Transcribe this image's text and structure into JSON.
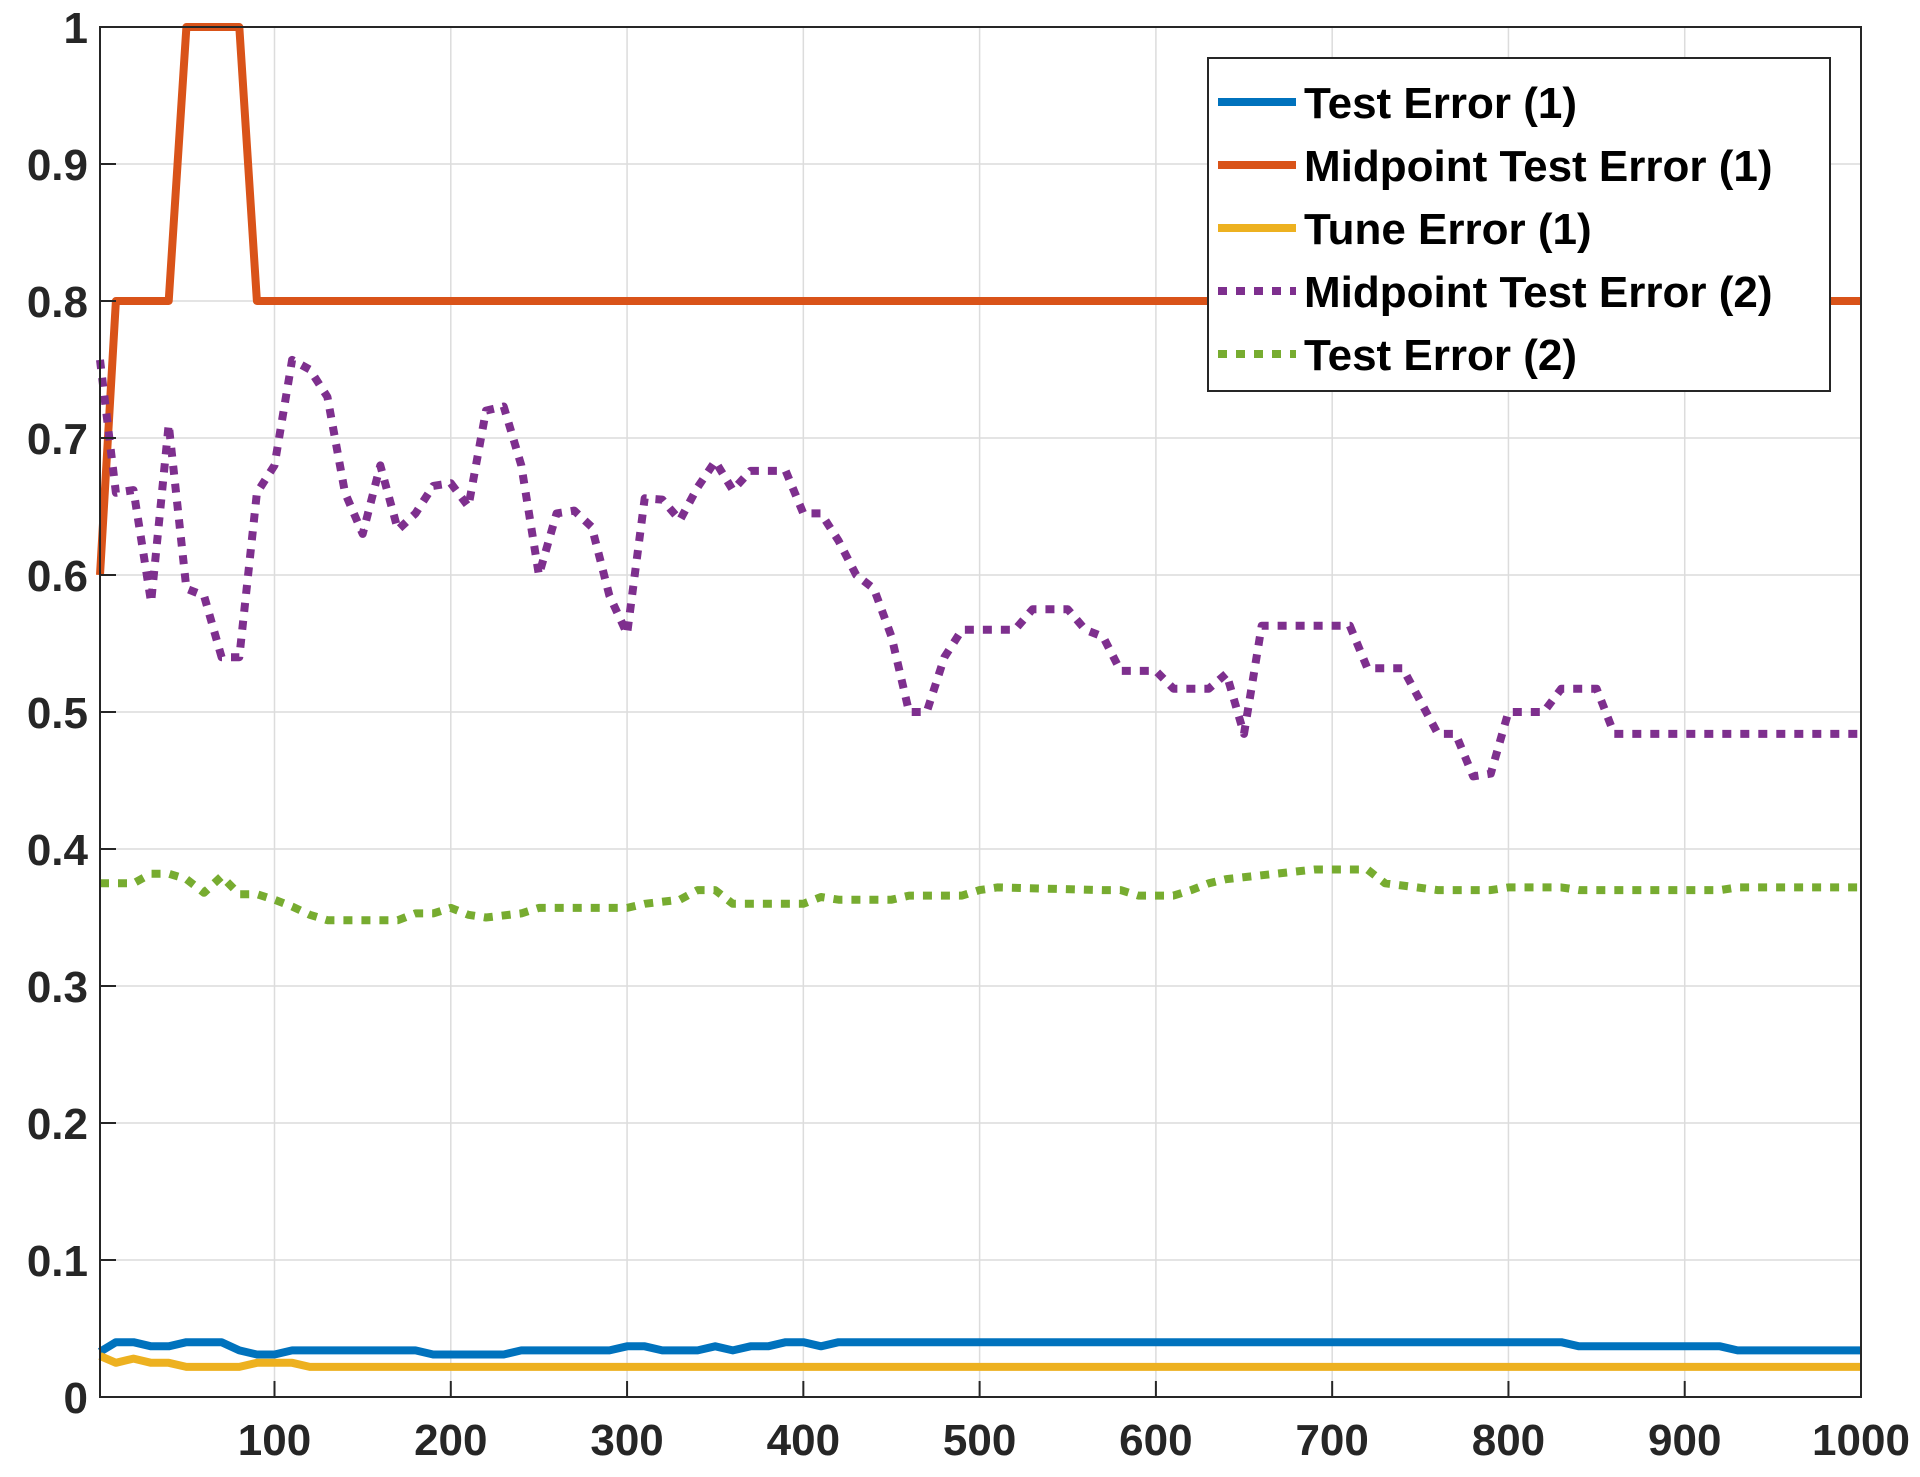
{
  "chart_data": {
    "type": "line",
    "title": "",
    "xlabel": "",
    "ylabel": "",
    "xlim": [
      1,
      1000
    ],
    "ylim": [
      0,
      1
    ],
    "xticks": [
      100,
      200,
      300,
      400,
      500,
      600,
      700,
      800,
      900,
      1000
    ],
    "xtick_labels": [
      "100",
      "200",
      "300",
      "400",
      "500",
      "600",
      "700",
      "800",
      "900",
      "1000"
    ],
    "yticks": [
      0,
      0.1,
      0.2,
      0.3,
      0.4,
      0.5,
      0.6,
      0.7,
      0.8,
      0.9,
      1
    ],
    "ytick_labels": [
      "0",
      "0.1",
      "0.2",
      "0.3",
      "0.4",
      "0.5",
      "0.6",
      "0.7",
      "0.8",
      "0.9",
      "1"
    ],
    "grid": true,
    "legend_position": "top-right",
    "series": [
      {
        "name": "Test  Error (1)",
        "color": "#0072BD",
        "style": "solid",
        "points": [
          [
            1,
            0.033
          ],
          [
            10,
            0.04
          ],
          [
            20,
            0.04
          ],
          [
            30,
            0.037
          ],
          [
            40,
            0.037
          ],
          [
            50,
            0.04
          ],
          [
            60,
            0.04
          ],
          [
            70,
            0.04
          ],
          [
            80,
            0.034
          ],
          [
            90,
            0.031
          ],
          [
            100,
            0.031
          ],
          [
            110,
            0.034
          ],
          [
            150,
            0.034
          ],
          [
            180,
            0.034
          ],
          [
            190,
            0.031
          ],
          [
            230,
            0.031
          ],
          [
            240,
            0.034
          ],
          [
            290,
            0.034
          ],
          [
            300,
            0.037
          ],
          [
            310,
            0.037
          ],
          [
            320,
            0.034
          ],
          [
            340,
            0.034
          ],
          [
            350,
            0.037
          ],
          [
            360,
            0.034
          ],
          [
            370,
            0.037
          ],
          [
            380,
            0.037
          ],
          [
            390,
            0.04
          ],
          [
            400,
            0.04
          ],
          [
            410,
            0.037
          ],
          [
            420,
            0.04
          ],
          [
            830,
            0.04
          ],
          [
            840,
            0.037
          ],
          [
            920,
            0.037
          ],
          [
            930,
            0.034
          ],
          [
            1000,
            0.034
          ]
        ]
      },
      {
        "name": "Midpoint Test Error (1)",
        "color": "#D95319",
        "style": "solid",
        "points": [
          [
            1,
            0.6
          ],
          [
            10,
            0.8
          ],
          [
            40,
            0.8
          ],
          [
            50,
            1
          ],
          [
            80,
            1
          ],
          [
            90,
            0.8
          ],
          [
            1000,
            0.8
          ]
        ]
      },
      {
        "name": "Tune Error (1)",
        "color": "#EDB120",
        "style": "solid",
        "points": [
          [
            1,
            0.03
          ],
          [
            10,
            0.025
          ],
          [
            20,
            0.028
          ],
          [
            30,
            0.025
          ],
          [
            40,
            0.025
          ],
          [
            50,
            0.022
          ],
          [
            80,
            0.022
          ],
          [
            90,
            0.025
          ],
          [
            110,
            0.025
          ],
          [
            120,
            0.022
          ],
          [
            1000,
            0.022
          ]
        ]
      },
      {
        "name": "Midpoint Test Error (2)",
        "color": "#7E2F8E",
        "style": "dotted",
        "points": [
          [
            1,
            0.757
          ],
          [
            10,
            0.66
          ],
          [
            20,
            0.662
          ],
          [
            30,
            0.58
          ],
          [
            40,
            0.71
          ],
          [
            50,
            0.59
          ],
          [
            60,
            0.585
          ],
          [
            70,
            0.54
          ],
          [
            80,
            0.54
          ],
          [
            90,
            0.66
          ],
          [
            100,
            0.68
          ],
          [
            110,
            0.757
          ],
          [
            120,
            0.75
          ],
          [
            130,
            0.73
          ],
          [
            140,
            0.66
          ],
          [
            150,
            0.63
          ],
          [
            160,
            0.68
          ],
          [
            170,
            0.633
          ],
          [
            180,
            0.645
          ],
          [
            190,
            0.665
          ],
          [
            200,
            0.667
          ],
          [
            210,
            0.65
          ],
          [
            220,
            0.72
          ],
          [
            230,
            0.723
          ],
          [
            240,
            0.68
          ],
          [
            250,
            0.6
          ],
          [
            260,
            0.645
          ],
          [
            270,
            0.647
          ],
          [
            280,
            0.635
          ],
          [
            290,
            0.585
          ],
          [
            300,
            0.557
          ],
          [
            310,
            0.656
          ],
          [
            320,
            0.655
          ],
          [
            330,
            0.64
          ],
          [
            340,
            0.664
          ],
          [
            350,
            0.683
          ],
          [
            360,
            0.662
          ],
          [
            370,
            0.676
          ],
          [
            390,
            0.676
          ],
          [
            400,
            0.645
          ],
          [
            410,
            0.645
          ],
          [
            420,
            0.625
          ],
          [
            430,
            0.6
          ],
          [
            440,
            0.59
          ],
          [
            450,
            0.555
          ],
          [
            460,
            0.5
          ],
          [
            470,
            0.5
          ],
          [
            480,
            0.54
          ],
          [
            490,
            0.56
          ],
          [
            520,
            0.56
          ],
          [
            530,
            0.575
          ],
          [
            550,
            0.575
          ],
          [
            560,
            0.56
          ],
          [
            570,
            0.555
          ],
          [
            580,
            0.53
          ],
          [
            600,
            0.53
          ],
          [
            610,
            0.517
          ],
          [
            630,
            0.517
          ],
          [
            640,
            0.528
          ],
          [
            650,
            0.484
          ],
          [
            660,
            0.563
          ],
          [
            710,
            0.563
          ],
          [
            720,
            0.532
          ],
          [
            740,
            0.532
          ],
          [
            760,
            0.484
          ],
          [
            770,
            0.484
          ],
          [
            780,
            0.453
          ],
          [
            790,
            0.455
          ],
          [
            800,
            0.5
          ],
          [
            820,
            0.5
          ],
          [
            830,
            0.517
          ],
          [
            850,
            0.517
          ],
          [
            860,
            0.484
          ],
          [
            1000,
            0.484
          ]
        ]
      },
      {
        "name": "Test Error (2)",
        "color": "#77AC30",
        "style": "dotted",
        "points": [
          [
            1,
            0.375
          ],
          [
            20,
            0.375
          ],
          [
            30,
            0.382
          ],
          [
            40,
            0.382
          ],
          [
            50,
            0.378
          ],
          [
            60,
            0.368
          ],
          [
            70,
            0.38
          ],
          [
            80,
            0.367
          ],
          [
            90,
            0.367
          ],
          [
            100,
            0.363
          ],
          [
            110,
            0.358
          ],
          [
            120,
            0.352
          ],
          [
            130,
            0.348
          ],
          [
            170,
            0.348
          ],
          [
            180,
            0.353
          ],
          [
            190,
            0.353
          ],
          [
            200,
            0.357
          ],
          [
            210,
            0.352
          ],
          [
            220,
            0.35
          ],
          [
            240,
            0.353
          ],
          [
            250,
            0.357
          ],
          [
            300,
            0.357
          ],
          [
            310,
            0.36
          ],
          [
            330,
            0.363
          ],
          [
            340,
            0.37
          ],
          [
            350,
            0.37
          ],
          [
            360,
            0.36
          ],
          [
            400,
            0.36
          ],
          [
            410,
            0.365
          ],
          [
            420,
            0.363
          ],
          [
            450,
            0.363
          ],
          [
            460,
            0.366
          ],
          [
            490,
            0.366
          ],
          [
            500,
            0.37
          ],
          [
            510,
            0.372
          ],
          [
            570,
            0.37
          ],
          [
            580,
            0.37
          ],
          [
            590,
            0.366
          ],
          [
            610,
            0.366
          ],
          [
            620,
            0.37
          ],
          [
            630,
            0.375
          ],
          [
            640,
            0.378
          ],
          [
            690,
            0.385
          ],
          [
            720,
            0.385
          ],
          [
            730,
            0.375
          ],
          [
            760,
            0.37
          ],
          [
            790,
            0.37
          ],
          [
            800,
            0.372
          ],
          [
            830,
            0.372
          ],
          [
            840,
            0.37
          ],
          [
            920,
            0.37
          ],
          [
            930,
            0.372
          ],
          [
            1000,
            0.372
          ]
        ]
      }
    ]
  }
}
